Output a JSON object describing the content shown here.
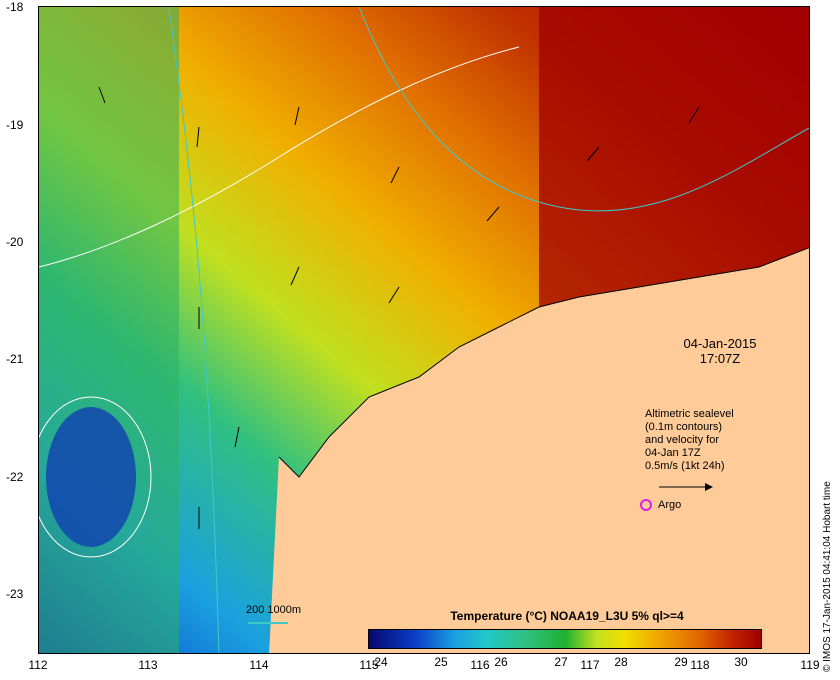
{
  "axes": {
    "x_ticks": [
      "112",
      "113",
      "114",
      "115",
      "116",
      "117",
      "118",
      "119"
    ],
    "y_ticks": [
      "-18",
      "-19",
      "-20",
      "-21",
      "-22",
      "-23"
    ]
  },
  "annotation": {
    "date": "04-Jan-2015",
    "time": "17:07Z"
  },
  "legend": {
    "lines": [
      "Altimetric sealevel",
      "(0.1m contours)",
      "and velocity for",
      "04-Jan 17Z",
      "0.5m/s (1kt 24h)"
    ],
    "argo_label": "Argo",
    "depth_label": "200  1000m"
  },
  "colorbar": {
    "title": "Temperature (°C) NOAA19_L3U 5% ql>=4",
    "ticks": [
      "24",
      "25",
      "26",
      "27",
      "28",
      "29",
      "30"
    ]
  },
  "credit": "© IMOS 17-Jan-2015 04:41:04 Hobart time",
  "colors": {
    "land": "#ffcc99",
    "warm": "#a00000",
    "cool": "#0a3fc8",
    "contour": "#ffffff",
    "bathymetry": "#40c8c8",
    "argo": "#e020e0"
  }
}
